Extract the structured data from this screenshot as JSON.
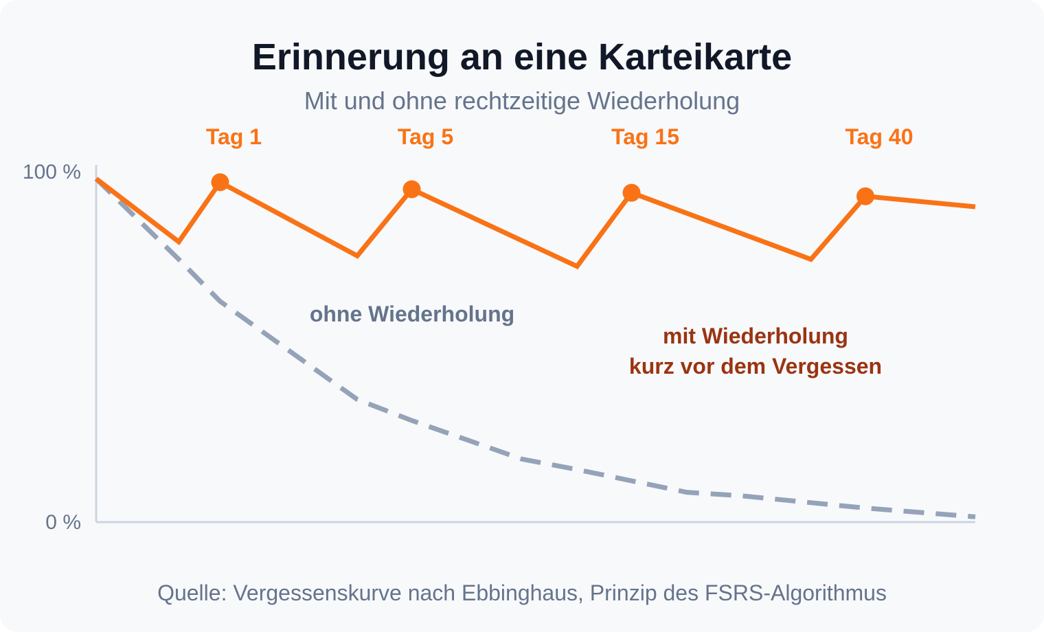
{
  "title": "Erinnerung an eine Karteikarte",
  "subtitle": "Mit und ohne rechtzeitige Wiederholung",
  "source": "Quelle: Vergessenskurve nach Ebbinghaus, Prinzip des FSRS-Algorithmus",
  "colors": {
    "with_review": "#f97316",
    "with_review_label": "#9a3412",
    "without_review": "#94a3b8",
    "without_review_label": "#64748b",
    "axis": "#cbd5e1",
    "tick_text": "#64748b"
  },
  "chart_data": {
    "type": "line",
    "ytick_labels": [
      "100 %",
      "0 %"
    ],
    "ylim": [
      0,
      100
    ],
    "xlim": [
      0,
      1
    ],
    "grid": false,
    "review_labels": [
      "Tag 1",
      "Tag 5",
      "Tag 15",
      "Tag 40"
    ],
    "series": [
      {
        "name": "mit Wiederholung\nkurz vor dem Vergessen",
        "style": "solid",
        "x": [
          0,
          0.094,
          0.141,
          0.297,
          0.359,
          0.547,
          0.609,
          0.813,
          0.875,
          1.0
        ],
        "y": [
          98,
          80,
          97,
          76,
          95,
          73,
          94,
          75,
          93,
          90
        ],
        "review_points": [
          {
            "x": 0.141,
            "y": 97,
            "label": "Tag 1"
          },
          {
            "x": 0.359,
            "y": 95,
            "label": "Tag 5"
          },
          {
            "x": 0.609,
            "y": 94,
            "label": "Tag 15"
          },
          {
            "x": 0.875,
            "y": 93,
            "label": "Tag 40"
          }
        ]
      },
      {
        "name": "ohne Wiederholung",
        "style": "dashed",
        "x": [
          0,
          0.094,
          0.141,
          0.297,
          0.359,
          0.484,
          0.547,
          0.672,
          0.734,
          0.875,
          1.0
        ],
        "y": [
          98,
          75,
          63,
          35,
          29,
          18,
          15,
          8.5,
          7.5,
          4,
          1.5
        ]
      }
    ]
  }
}
